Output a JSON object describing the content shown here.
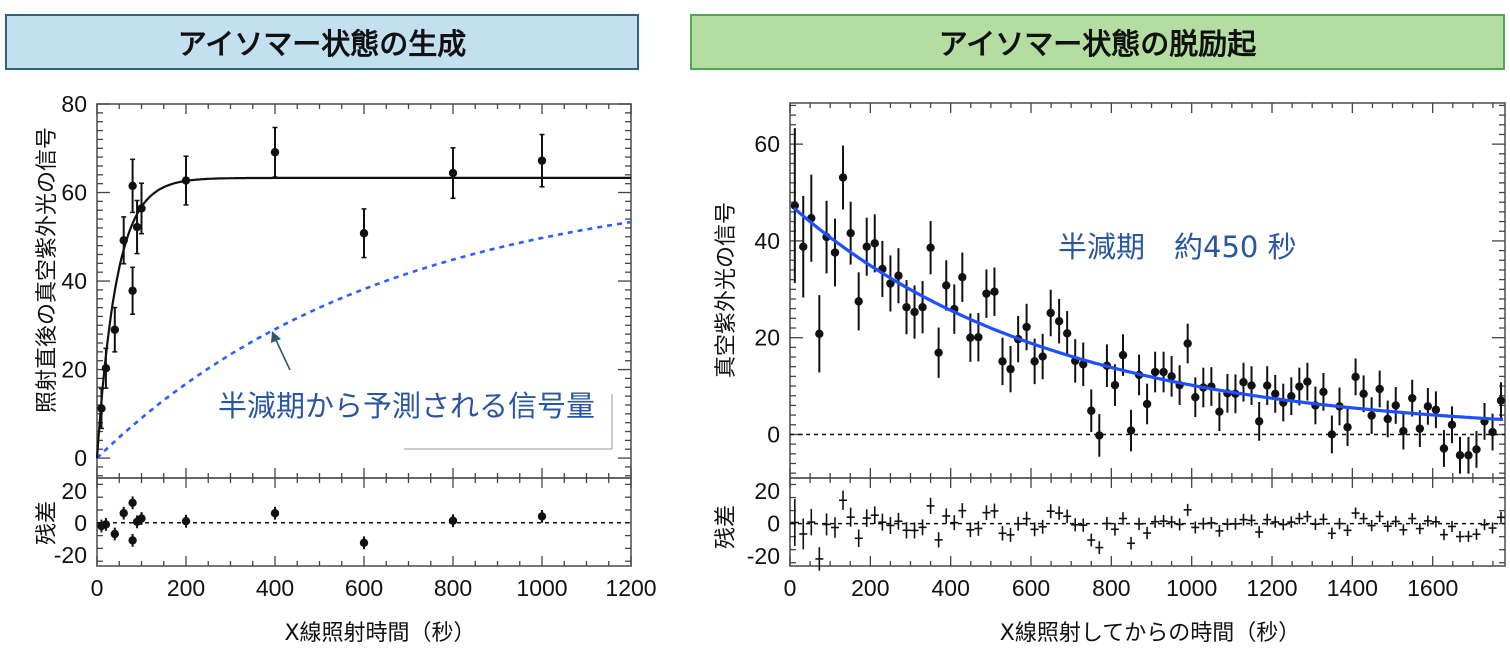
{
  "headers": {
    "left": "アイソマー状態の生成",
    "right": "アイソマー状態の脱励起"
  },
  "colors": {
    "left_header_bg": "#c3e0f1",
    "right_header_bg": "#b4dea1",
    "fit_black": "#111111",
    "fit_blue": "#1f4fff",
    "prediction_dashed": "#2f5cff",
    "annotation_text": "#2a55a0"
  },
  "chart_data": [
    {
      "type": "scatter",
      "title": "アイソマー状態の生成",
      "xlabel": "X線照射時間（秒）",
      "ylabel": "照射直後の真空紫外光の信号",
      "residual_label": "残差",
      "xlim": [
        0,
        1200
      ],
      "ylim": [
        -4.5,
        80
      ],
      "residual_ylim": [
        -27,
        28
      ],
      "xticks": [
        0,
        200,
        400,
        600,
        800,
        1000,
        1200
      ],
      "yticks": [
        0,
        20,
        40,
        60,
        80
      ],
      "residual_yticks": [
        -20,
        0,
        20
      ],
      "grid": false,
      "points": [
        {
          "x": 10,
          "y": 11.2,
          "err": 4.5,
          "res": -2
        },
        {
          "x": 20,
          "y": 20.3,
          "err": 4.5,
          "res": -1
        },
        {
          "x": 40,
          "y": 29,
          "err": 5,
          "res": -7
        },
        {
          "x": 60,
          "y": 49.2,
          "err": 5.3,
          "res": 6
        },
        {
          "x": 80,
          "y": 61.5,
          "err": 6,
          "res": 12.5
        },
        {
          "x": 80,
          "y": 37.8,
          "err": 5.3,
          "res": -11
        },
        {
          "x": 90,
          "y": 52.2,
          "err": 6,
          "res": 0.6
        },
        {
          "x": 100,
          "y": 56.4,
          "err": 5.7,
          "res": 2.7
        },
        {
          "x": 200,
          "y": 62.7,
          "err": 5.5,
          "res": 1
        },
        {
          "x": 400,
          "y": 69.1,
          "err": 5.6,
          "res": 6
        },
        {
          "x": 600,
          "y": 50.8,
          "err": 5.5,
          "res": -12.5
        },
        {
          "x": 800,
          "y": 64.4,
          "err": 5.7,
          "res": 1.3
        },
        {
          "x": 1000,
          "y": 67.2,
          "err": 5.9,
          "res": 4
        }
      ],
      "fit": {
        "style": "solid",
        "color": "#111111",
        "amplitude": 63.3,
        "time_constant": 44
      },
      "prediction": {
        "style": "dashed",
        "color": "#2f5cff",
        "amplitude": 63.3,
        "half_life": 450
      },
      "annotation": "半減期から予測される信号量"
    },
    {
      "type": "scatter",
      "title": "アイソマー状態の脱励起",
      "xlabel": "X線照射してからの時間（秒）",
      "ylabel": "真空紫外光の信号",
      "residual_label": "残差",
      "xlim": [
        0,
        1780
      ],
      "ylim": [
        -9,
        68.5
      ],
      "residual_ylim": [
        -26,
        28
      ],
      "xticks": [
        0,
        200,
        400,
        600,
        800,
        1000,
        1200,
        1400,
        1600
      ],
      "yticks": [
        0,
        20,
        40,
        60
      ],
      "residual_yticks": [
        -20,
        0,
        20
      ],
      "grid": false,
      "reference_line": 0,
      "fit": {
        "style": "solid",
        "color": "#1f4fff",
        "amplitude": 47.5,
        "half_life": 450
      },
      "annotation": "半減期　約450 秒",
      "points": [
        [
          12,
          47.3,
          16
        ],
        [
          33,
          38.8,
          10.5
        ],
        [
          53,
          44.7,
          9
        ],
        [
          73,
          20.8,
          8
        ],
        [
          91,
          40.8,
          7.5
        ],
        [
          112,
          37.6,
          7
        ],
        [
          132,
          53.1,
          6.6
        ],
        [
          151,
          41.6,
          6.5
        ],
        [
          171,
          27.5,
          6
        ],
        [
          191,
          38.8,
          6
        ],
        [
          211,
          39.5,
          6
        ],
        [
          230,
          34.2,
          5.8
        ],
        [
          250,
          31.2,
          5.8
        ],
        [
          270,
          32.8,
          5.7
        ],
        [
          290,
          26.3,
          5.6
        ],
        [
          310,
          25.3,
          5.5
        ],
        [
          330,
          26.3,
          5.4
        ],
        [
          350,
          38.6,
          5.5
        ],
        [
          370,
          16.9,
          5.2
        ],
        [
          389,
          30.8,
          5.2
        ],
        [
          409,
          25.9,
          5.1
        ],
        [
          429,
          32.5,
          5.1
        ],
        [
          449,
          20,
          5
        ],
        [
          469,
          20.1,
          5
        ],
        [
          489,
          29.1,
          5
        ],
        [
          509,
          29.5,
          5
        ],
        [
          529,
          15.1,
          4.9
        ],
        [
          549,
          13.5,
          4.8
        ],
        [
          568,
          19.7,
          4.8
        ],
        [
          589,
          22.2,
          4.8
        ],
        [
          609,
          15.1,
          4.7
        ],
        [
          629,
          16.1,
          4.7
        ],
        [
          649,
          25.1,
          4.8
        ],
        [
          670,
          23.4,
          4.6
        ],
        [
          690,
          20.9,
          4.6
        ],
        [
          710,
          15.2,
          4.5
        ],
        [
          730,
          14.5,
          4.5
        ],
        [
          750,
          4.9,
          4.4
        ],
        [
          770,
          -0.2,
          4.4
        ],
        [
          789,
          14.2,
          4.4
        ],
        [
          809,
          10.2,
          4.3
        ],
        [
          829,
          16.4,
          4.3
        ],
        [
          849,
          0.8,
          4.3
        ],
        [
          869,
          12.3,
          4.2
        ],
        [
          889,
          6.3,
          4.2
        ],
        [
          909,
          12.9,
          4.2
        ],
        [
          930,
          12.9,
          4.2
        ],
        [
          950,
          12,
          4.2
        ],
        [
          970,
          10.2,
          4.1
        ],
        [
          990,
          18.8,
          4.1
        ],
        [
          1009,
          7.7,
          4.1
        ],
        [
          1029,
          9.7,
          4.1
        ],
        [
          1049,
          9.9,
          4
        ],
        [
          1069,
          4.7,
          4
        ],
        [
          1089,
          8.5,
          4
        ],
        [
          1109,
          8.4,
          4
        ],
        [
          1129,
          10.8,
          4
        ],
        [
          1149,
          10.1,
          4
        ],
        [
          1168,
          2.7,
          4
        ],
        [
          1188,
          10.1,
          4
        ],
        [
          1208,
          8.4,
          3.9
        ],
        [
          1228,
          6.6,
          3.9
        ],
        [
          1248,
          7.9,
          3.9
        ],
        [
          1268,
          9.9,
          3.9
        ],
        [
          1288,
          10.9,
          3.9
        ],
        [
          1308,
          6,
          3.9
        ],
        [
          1328,
          8.8,
          3.9
        ],
        [
          1349,
          0,
          3.9
        ],
        [
          1368,
          5.8,
          3.9
        ],
        [
          1388,
          1.5,
          3.9
        ],
        [
          1408,
          11.9,
          3.8
        ],
        [
          1428,
          8.4,
          3.8
        ],
        [
          1448,
          3.9,
          3.8
        ],
        [
          1468,
          9.4,
          3.8
        ],
        [
          1488,
          3.2,
          3.8
        ],
        [
          1508,
          6,
          3.8
        ],
        [
          1527,
          0.7,
          3.8
        ],
        [
          1549,
          7.5,
          3.8
        ],
        [
          1568,
          1.2,
          3.8
        ],
        [
          1588,
          5.8,
          3.8
        ],
        [
          1608,
          5.1,
          3.8
        ],
        [
          1628,
          -2.9,
          3.8
        ],
        [
          1648,
          2,
          3.8
        ],
        [
          1668,
          -4.3,
          3.8
        ],
        [
          1689,
          -4.3,
          3.8
        ],
        [
          1709,
          -3.1,
          3.8
        ],
        [
          1729,
          2.7,
          3.8
        ],
        [
          1749,
          0.5,
          3.8
        ],
        [
          1770,
          7,
          3.8
        ]
      ]
    }
  ]
}
